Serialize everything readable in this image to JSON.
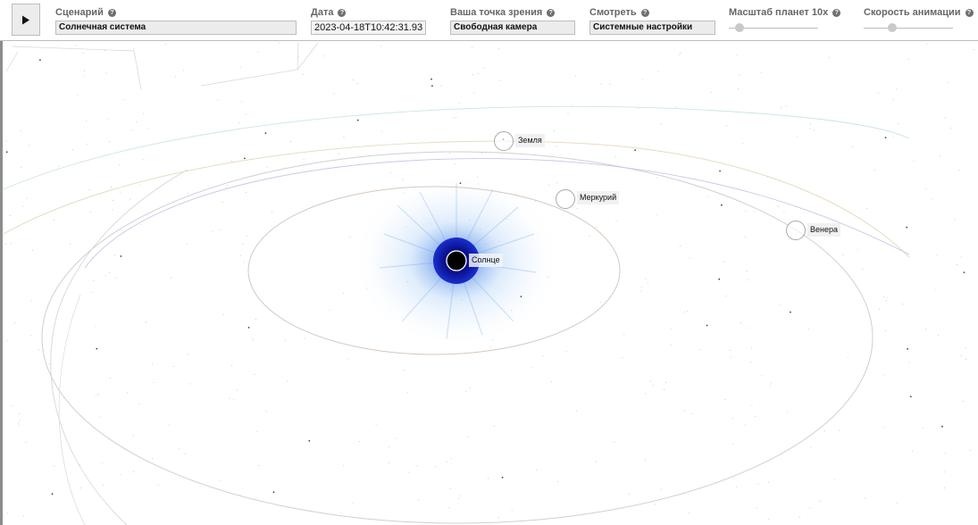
{
  "toolbar": {
    "play_icon": "play-icon",
    "scenario": {
      "label": "Сценарий",
      "value": "Солнечная система"
    },
    "date": {
      "label": "Дата",
      "value": "2023-04-18T10:42:31.93"
    },
    "viewpoint": {
      "label": "Ваша точка зрения",
      "value": "Свободная камера"
    },
    "look": {
      "label": "Смотреть",
      "value": "Системные настройки"
    },
    "planet_scale": {
      "label": "Масштаб планет 10x",
      "level": 0.08
    },
    "anim_speed": {
      "label": "Скорость анимации",
      "level": 0.3
    },
    "help_icon": "question-circle-icon"
  },
  "scene": {
    "bodies": [
      {
        "key": "sun",
        "label": "Солнце"
      },
      {
        "key": "earth",
        "label": "Земля"
      },
      {
        "key": "mercury",
        "label": "Меркурий"
      },
      {
        "key": "venus",
        "label": "Венера"
      }
    ]
  },
  "colors": {
    "sun_core": "#000000",
    "sun_ring": "#0d12a4",
    "glow": "#3b86e8",
    "panel_bg": "#ececec"
  }
}
